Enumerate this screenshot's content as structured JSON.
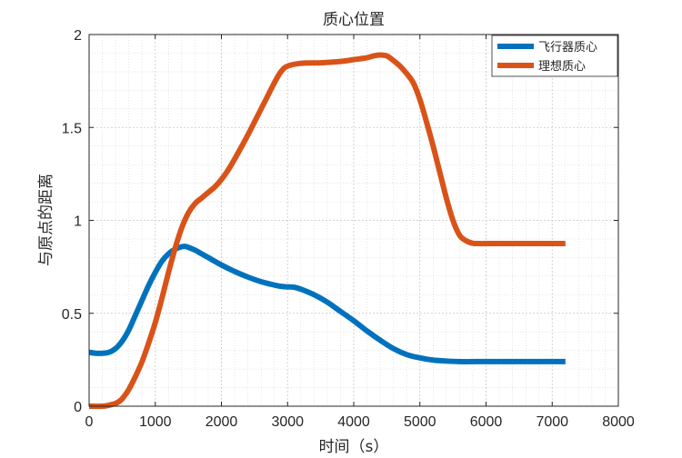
{
  "chart_data": {
    "type": "line",
    "title": "质心位置",
    "xlabel": "时间（s）",
    "ylabel": "与原点的距离",
    "xlim": [
      0,
      8000
    ],
    "ylim": [
      0,
      2
    ],
    "xticks": [
      0,
      1000,
      2000,
      3000,
      4000,
      5000,
      6000,
      7000,
      8000
    ],
    "yticks": [
      0,
      0.5,
      1,
      1.5,
      2
    ],
    "xtick_labels": [
      "0",
      "1000",
      "2000",
      "3000",
      "4000",
      "5000",
      "6000",
      "7000",
      "8000"
    ],
    "ytick_labels": [
      "0",
      "0.5",
      "1",
      "1.5",
      "2"
    ],
    "grid": true,
    "legend_position": "top-right",
    "series": [
      {
        "name": "飞行器质心",
        "color": "#0072BD",
        "x": [
          0,
          100,
          200,
          300,
          400,
          500,
          600,
          700,
          800,
          900,
          1000,
          1100,
          1200,
          1300,
          1400,
          1450,
          1500,
          1600,
          1700,
          1800,
          2000,
          2200,
          2400,
          2600,
          2800,
          2900,
          3000,
          3100,
          3200,
          3400,
          3600,
          3800,
          4000,
          4200,
          4400,
          4600,
          4800,
          5000,
          5200,
          5400,
          5600,
          5800,
          6000,
          6500,
          7000,
          7200
        ],
        "y": [
          0.29,
          0.285,
          0.285,
          0.29,
          0.31,
          0.35,
          0.41,
          0.49,
          0.57,
          0.65,
          0.72,
          0.78,
          0.82,
          0.845,
          0.858,
          0.86,
          0.855,
          0.84,
          0.82,
          0.8,
          0.76,
          0.725,
          0.695,
          0.67,
          0.652,
          0.645,
          0.642,
          0.64,
          0.63,
          0.6,
          0.56,
          0.51,
          0.46,
          0.405,
          0.355,
          0.31,
          0.278,
          0.26,
          0.248,
          0.243,
          0.24,
          0.24,
          0.24,
          0.24,
          0.24,
          0.24
        ]
      },
      {
        "name": "理想质心",
        "color": "#D95319",
        "x": [
          0,
          200,
          300,
          400,
          450,
          500,
          600,
          700,
          800,
          900,
          1000,
          1100,
          1200,
          1300,
          1400,
          1500,
          1600,
          1700,
          1800,
          1900,
          2000,
          2100,
          2200,
          2400,
          2600,
          2700,
          2800,
          2900,
          3000,
          3200,
          3500,
          3800,
          4000,
          4200,
          4300,
          4400,
          4500,
          4600,
          4700,
          4800,
          4900,
          5000,
          5100,
          5200,
          5300,
          5400,
          5500,
          5600,
          5700,
          5800,
          5900,
          6000,
          6500,
          7000,
          7200
        ],
        "y": [
          0,
          0,
          0.005,
          0.015,
          0.025,
          0.04,
          0.09,
          0.16,
          0.24,
          0.34,
          0.45,
          0.58,
          0.72,
          0.85,
          0.96,
          1.04,
          1.09,
          1.12,
          1.15,
          1.18,
          1.22,
          1.27,
          1.33,
          1.46,
          1.6,
          1.67,
          1.74,
          1.8,
          1.83,
          1.845,
          1.848,
          1.855,
          1.865,
          1.875,
          1.885,
          1.89,
          1.885,
          1.86,
          1.83,
          1.79,
          1.74,
          1.65,
          1.53,
          1.4,
          1.26,
          1.12,
          1.0,
          0.92,
          0.89,
          0.877,
          0.875,
          0.875,
          0.875,
          0.875,
          0.875
        ]
      }
    ]
  }
}
